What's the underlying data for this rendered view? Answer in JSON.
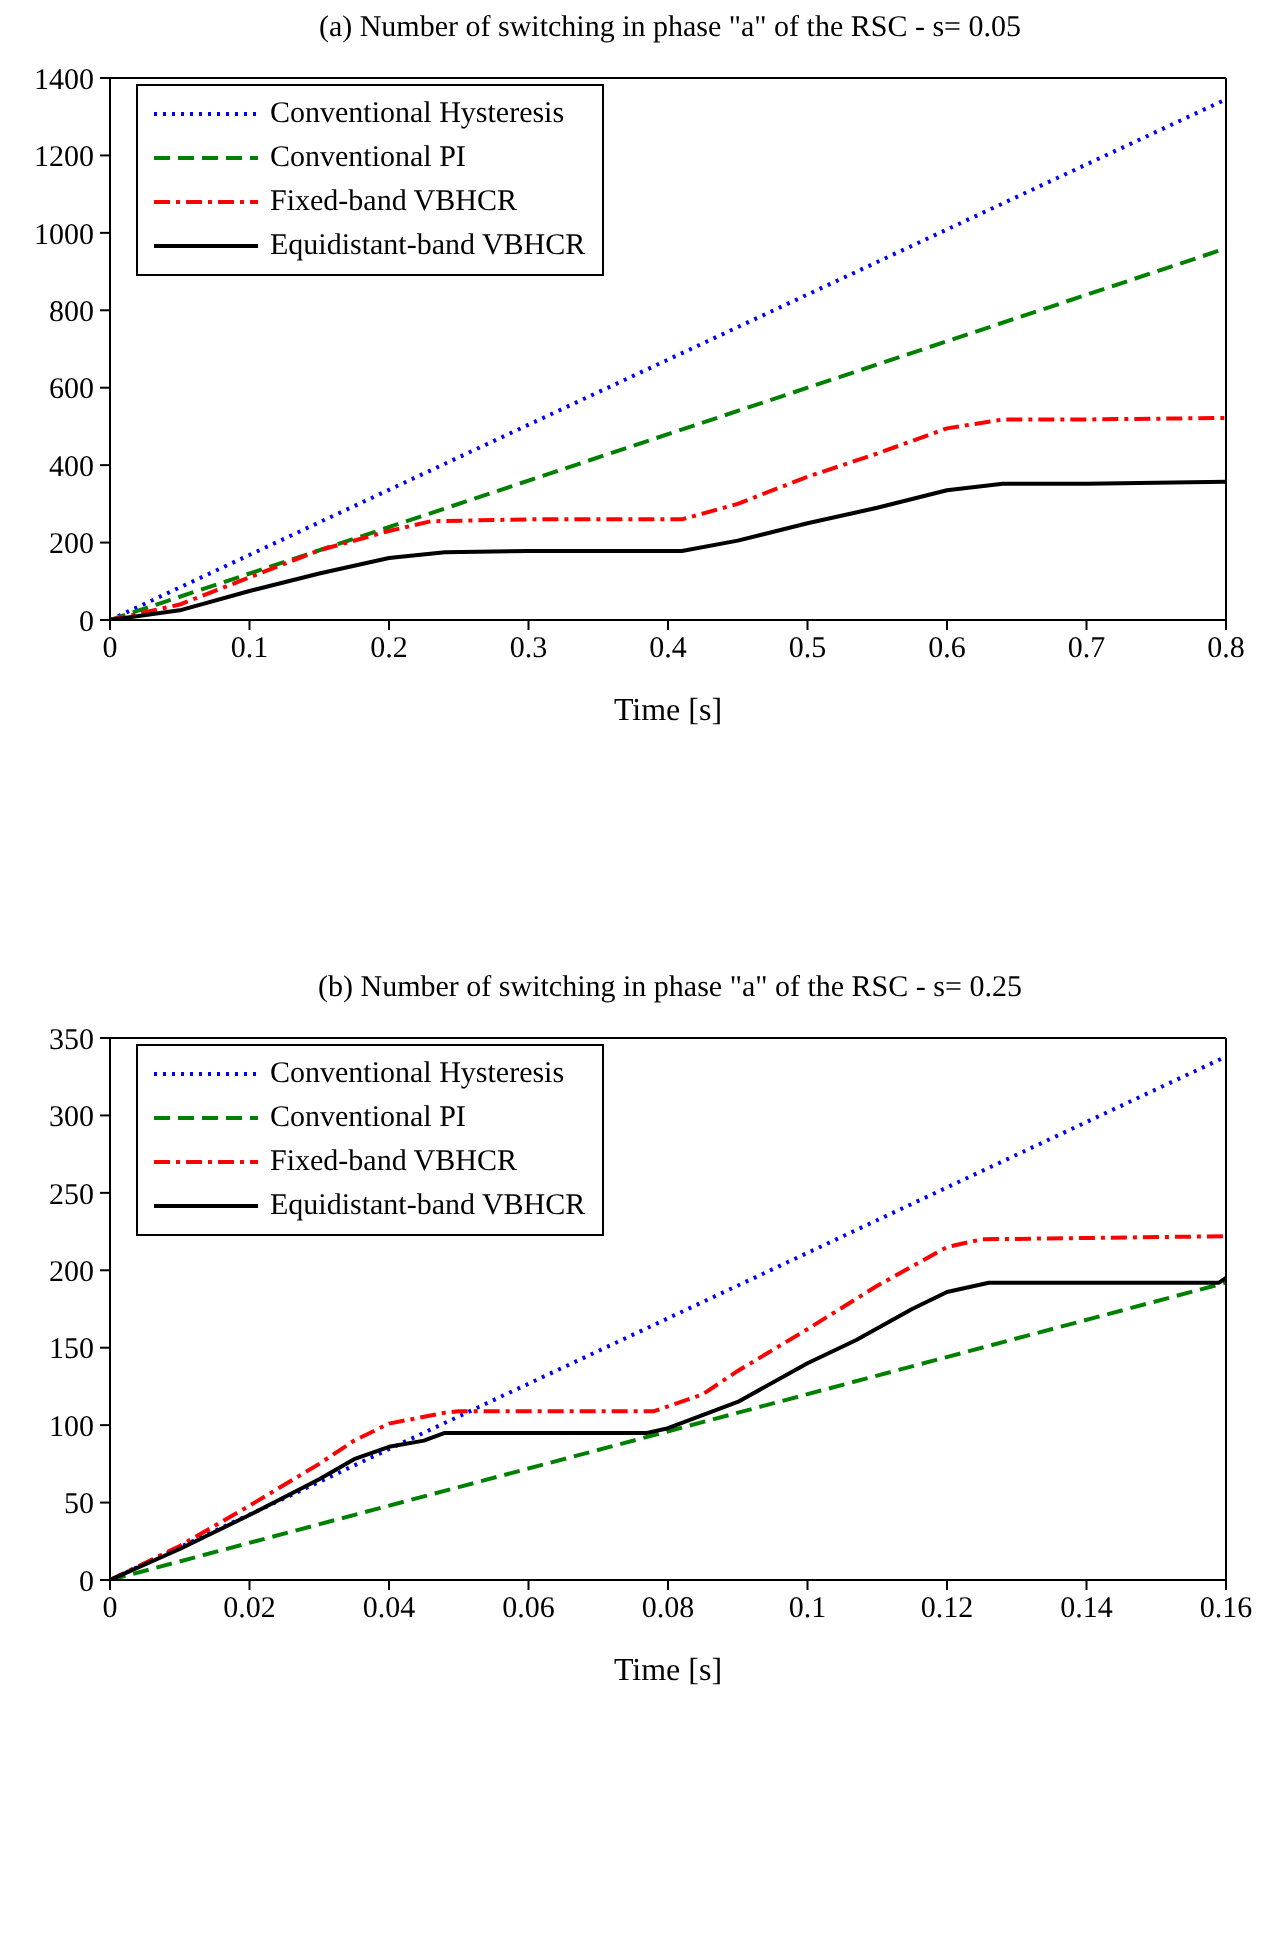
{
  "chart_data": [
    {
      "type": "line",
      "title": "(a) Number of switching in phase \"a\" of the RSC - s= 0.05",
      "xlabel": "Time [s]",
      "xlim": [
        0,
        0.8
      ],
      "xticks": [
        0,
        0.1,
        0.2,
        0.3,
        0.4,
        0.5,
        0.6,
        0.7,
        0.8
      ],
      "ylim": [
        0,
        1400
      ],
      "yticks": [
        0,
        200,
        400,
        600,
        800,
        1000,
        1200,
        1400
      ],
      "legend": "top left",
      "marker": "none",
      "series": [
        {
          "name": "Conventional Hysteresis",
          "color": "#0000ff",
          "line_style": "dotted",
          "x": [
            0,
            0.8
          ],
          "values": [
            0,
            1345
          ]
        },
        {
          "name": "Conventional PI",
          "color": "#008000",
          "line_style": "dashed",
          "x": [
            0,
            0.8
          ],
          "values": [
            0,
            960
          ]
        },
        {
          "name": "Fixed-band VBHCR",
          "color": "#ff0000",
          "line_style": "dashdot",
          "x": [
            0,
            0.05,
            0.1,
            0.15,
            0.2,
            0.23,
            0.3,
            0.41,
            0.45,
            0.5,
            0.55,
            0.6,
            0.64,
            0.7,
            0.8
          ],
          "values": [
            0,
            40,
            110,
            180,
            230,
            255,
            260,
            260,
            300,
            370,
            430,
            495,
            518,
            518,
            522
          ]
        },
        {
          "name": "Equidistant-band VBHCR",
          "color": "#000000",
          "line_style": "solid",
          "x": [
            0,
            0.05,
            0.1,
            0.15,
            0.2,
            0.24,
            0.3,
            0.41,
            0.45,
            0.5,
            0.55,
            0.6,
            0.64,
            0.7,
            0.8
          ],
          "values": [
            0,
            25,
            75,
            120,
            160,
            175,
            178,
            178,
            205,
            250,
            290,
            335,
            352,
            352,
            357
          ]
        }
      ]
    },
    {
      "type": "line",
      "title": "(b) Number of switching in phase \"a\" of the RSC - s= 0.25",
      "xlabel": "Time [s]",
      "xlim": [
        0,
        0.16
      ],
      "xticks": [
        0,
        0.02,
        0.04,
        0.06,
        0.08,
        0.1,
        0.12,
        0.14,
        0.16
      ],
      "ylim": [
        0,
        350
      ],
      "yticks": [
        0,
        50,
        100,
        150,
        200,
        250,
        300,
        350
      ],
      "legend": "top left",
      "marker": "none",
      "series": [
        {
          "name": "Conventional Hysteresis",
          "color": "#0000ff",
          "line_style": "dotted",
          "x": [
            0,
            0.16
          ],
          "values": [
            0,
            338
          ]
        },
        {
          "name": "Conventional PI",
          "color": "#008000",
          "line_style": "dashed",
          "x": [
            0,
            0.16
          ],
          "values": [
            0,
            192
          ]
        },
        {
          "name": "Fixed-band VBHCR",
          "color": "#ff0000",
          "line_style": "dashdot",
          "x": [
            0,
            0.01,
            0.02,
            0.03,
            0.035,
            0.04,
            0.048,
            0.05,
            0.078,
            0.085,
            0.09,
            0.1,
            0.11,
            0.12,
            0.125,
            0.16
          ],
          "values": [
            0,
            22,
            48,
            75,
            90,
            101,
            108,
            109,
            109,
            120,
            135,
            162,
            190,
            215,
            220,
            222
          ]
        },
        {
          "name": "Equidistant-band VBHCR",
          "color": "#000000",
          "line_style": "solid",
          "x": [
            0,
            0.01,
            0.02,
            0.03,
            0.035,
            0.04,
            0.045,
            0.048,
            0.077,
            0.08,
            0.09,
            0.1,
            0.107,
            0.115,
            0.12,
            0.126,
            0.159,
            0.16
          ],
          "values": [
            0,
            20,
            42,
            65,
            78,
            86,
            90,
            95,
            95,
            98,
            115,
            140,
            155,
            175,
            186,
            192,
            192,
            195
          ]
        }
      ]
    }
  ]
}
